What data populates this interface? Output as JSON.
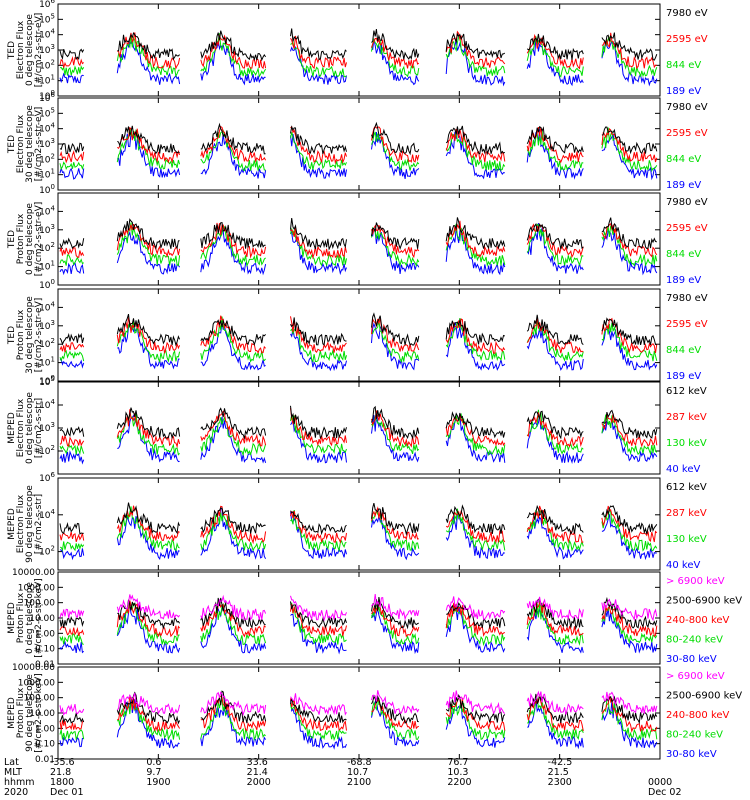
{
  "colors": {
    "blue": "#0000ff",
    "red": "#ff0000",
    "green": "#00dd00",
    "black": "#000000",
    "magenta": "#ff00ff"
  },
  "chart_data": {
    "type": "line",
    "x_range_hhmm": [
      "1800",
      "0000"
    ],
    "panels": [
      {
        "ylabel": [
          "TED",
          "Electron Flux",
          "0 deg telescope",
          "[#/cm2-s-str-eV]"
        ],
        "yscale": "log",
        "ylim": [
          1,
          1000000
        ],
        "yticks": [
          {
            "v": 1,
            "label": "10",
            "sup": "0"
          },
          {
            "v": 10,
            "label": "10",
            "sup": "1"
          },
          {
            "v": 100,
            "label": "10",
            "sup": "2"
          },
          {
            "v": 1000,
            "label": "10",
            "sup": "3"
          },
          {
            "v": 10000,
            "label": "10",
            "sup": "4"
          },
          {
            "v": 100000,
            "label": "10",
            "sup": "5"
          },
          {
            "v": 1000000,
            "label": "10",
            "sup": "6"
          }
        ],
        "series": [
          {
            "name": "7980 eV",
            "color": "black"
          },
          {
            "name": "2595 eV",
            "color": "red"
          },
          {
            "name": "844 eV",
            "color": "green"
          },
          {
            "name": "189 eV",
            "color": "blue"
          }
        ]
      },
      {
        "ylabel": [
          "TED",
          "Electron Flux",
          "30 deg telescope",
          "[#/cm2-s-str-eV]"
        ],
        "yscale": "log",
        "ylim": [
          1,
          1000000
        ],
        "yticks": [
          {
            "v": 1,
            "label": "10",
            "sup": "0"
          },
          {
            "v": 10,
            "label": "10",
            "sup": "1"
          },
          {
            "v": 100,
            "label": "10",
            "sup": "2"
          },
          {
            "v": 1000,
            "label": "10",
            "sup": "3"
          },
          {
            "v": 10000,
            "label": "10",
            "sup": "4"
          },
          {
            "v": 100000,
            "label": "10",
            "sup": "5"
          },
          {
            "v": 1000000,
            "label": "10",
            "sup": "6"
          }
        ],
        "series": [
          {
            "name": "7980 eV",
            "color": "black"
          },
          {
            "name": "2595 eV",
            "color": "red"
          },
          {
            "name": "844 eV",
            "color": "green"
          },
          {
            "name": "189 eV",
            "color": "blue"
          }
        ]
      },
      {
        "ylabel": [
          "TED",
          "Proton Flux",
          "0 deg telescope",
          "[#/cm2-s-str-eV]"
        ],
        "yscale": "log",
        "ylim": [
          1,
          100000
        ],
        "yticks": [
          {
            "v": 1,
            "label": "10",
            "sup": "0"
          },
          {
            "v": 10,
            "label": "10",
            "sup": "1"
          },
          {
            "v": 100,
            "label": "10",
            "sup": "2"
          },
          {
            "v": 1000,
            "label": "10",
            "sup": "3"
          },
          {
            "v": 10000,
            "label": "10",
            "sup": "4"
          }
        ],
        "series": [
          {
            "name": "7980 eV",
            "color": "black"
          },
          {
            "name": "2595 eV",
            "color": "red"
          },
          {
            "name": "844 eV",
            "color": "green"
          },
          {
            "name": "189 eV",
            "color": "blue"
          }
        ]
      },
      {
        "ylabel": [
          "TED",
          "Proton Flux",
          "30 deg telescope",
          "[#/cm2-s-str-eV]"
        ],
        "yscale": "log",
        "ylim": [
          1,
          100000
        ],
        "yticks": [
          {
            "v": 1,
            "label": "10",
            "sup": "0"
          },
          {
            "v": 10,
            "label": "10",
            "sup": "1"
          },
          {
            "v": 100,
            "label": "10",
            "sup": "2"
          },
          {
            "v": 1000,
            "label": "10",
            "sup": "3"
          },
          {
            "v": 10000,
            "label": "10",
            "sup": "4"
          }
        ],
        "series": [
          {
            "name": "7980 eV",
            "color": "black"
          },
          {
            "name": "2595 eV",
            "color": "red"
          },
          {
            "name": "844 eV",
            "color": "green"
          },
          {
            "name": "189 eV",
            "color": "blue"
          }
        ]
      },
      {
        "ylabel": [
          "MEPED",
          "Electron Flux",
          "0 deg telescope",
          "[#/cm2-s-str]"
        ],
        "yscale": "log",
        "ylim": [
          10,
          100000
        ],
        "yticks": [
          {
            "v": 100,
            "label": "10",
            "sup": "2"
          },
          {
            "v": 1000,
            "label": "10",
            "sup": "3"
          },
          {
            "v": 10000,
            "label": "10",
            "sup": "4"
          },
          {
            "v": 100000,
            "label": "10",
            "sup": "5"
          }
        ],
        "series": [
          {
            "name": "612 keV",
            "color": "black"
          },
          {
            "name": "287 keV",
            "color": "red"
          },
          {
            "name": "130 keV",
            "color": "green"
          },
          {
            "name": "40 keV",
            "color": "blue"
          }
        ]
      },
      {
        "ylabel": [
          "MEPED",
          "Electron Flux",
          "90 deg telescope",
          "[#/cm2-s-str]"
        ],
        "yscale": "log",
        "ylim": [
          10,
          1000000
        ],
        "yticks": [
          {
            "v": 100,
            "label": "10",
            "sup": "2"
          },
          {
            "v": 10000,
            "label": "10",
            "sup": "4"
          },
          {
            "v": 1000000,
            "label": "10",
            "sup": "6"
          }
        ],
        "series": [
          {
            "name": "612 keV",
            "color": "black"
          },
          {
            "name": "287 keV",
            "color": "red"
          },
          {
            "name": "130 keV",
            "color": "green"
          },
          {
            "name": "40 keV",
            "color": "blue"
          }
        ]
      },
      {
        "ylabel": [
          "MEPED",
          "Proton Flux",
          "0 deg telescope",
          "[#/cm2-s-str-keV]"
        ],
        "yscale": "log",
        "ylim": [
          0.01,
          10000
        ],
        "yticks": [
          {
            "v": 0.01,
            "label": "0.01"
          },
          {
            "v": 0.1,
            "label": "0.10"
          },
          {
            "v": 1,
            "label": "1.00"
          },
          {
            "v": 10,
            "label": "10.00"
          },
          {
            "v": 100,
            "label": "100.00"
          },
          {
            "v": 1000,
            "label": "1000.00"
          },
          {
            "v": 10000,
            "label": "10000.00"
          }
        ],
        "series": [
          {
            "name": "> 6900 keV",
            "color": "magenta"
          },
          {
            "name": "2500-6900 keV",
            "color": "black"
          },
          {
            "name": "240-800 keV",
            "color": "red"
          },
          {
            "name": "80-240 keV",
            "color": "green"
          },
          {
            "name": "30-80 keV",
            "color": "blue"
          }
        ]
      },
      {
        "ylabel": [
          "MEPED",
          "Proton Flux",
          "90 deg telescope",
          "[#/cm2-s-str-keV]"
        ],
        "yscale": "log",
        "ylim": [
          0.01,
          10000
        ],
        "yticks": [
          {
            "v": 0.01,
            "label": "0.01"
          },
          {
            "v": 0.1,
            "label": "0.10"
          },
          {
            "v": 1,
            "label": "1.00"
          },
          {
            "v": 10,
            "label": "10.00"
          },
          {
            "v": 100,
            "label": "100.00"
          },
          {
            "v": 1000,
            "label": "1000.00"
          },
          {
            "v": 10000,
            "label": "10000.00"
          }
        ],
        "series": [
          {
            "name": "> 6900 keV",
            "color": "magenta"
          },
          {
            "name": "2500-6900 keV",
            "color": "black"
          },
          {
            "name": "240-800 keV",
            "color": "red"
          },
          {
            "name": "80-240 keV",
            "color": "green"
          },
          {
            "name": "30-80 keV",
            "color": "blue"
          }
        ]
      }
    ],
    "xaxis": {
      "row_labels": [
        "Lat",
        "MLT",
        "hhmm",
        "2020"
      ],
      "ticks": [
        {
          "lat": "-35.6",
          "mlt": "21.8",
          "hhmm": "1800",
          "date": "Dec 01"
        },
        {
          "lat": "0.6",
          "mlt": "9.7",
          "hhmm": "1900",
          "date": ""
        },
        {
          "lat": "33.6",
          "mlt": "21.4",
          "hhmm": "2000",
          "date": ""
        },
        {
          "lat": "-68.8",
          "mlt": "10.7",
          "hhmm": "2100",
          "date": ""
        },
        {
          "lat": "76.7",
          "mlt": "10.3",
          "hhmm": "2200",
          "date": ""
        },
        {
          "lat": "-42.5",
          "mlt": "21.5",
          "hhmm": "2300",
          "date": ""
        },
        {
          "lat": "",
          "mlt": "",
          "hhmm": "0000",
          "date": "Dec 02"
        }
      ]
    }
  }
}
